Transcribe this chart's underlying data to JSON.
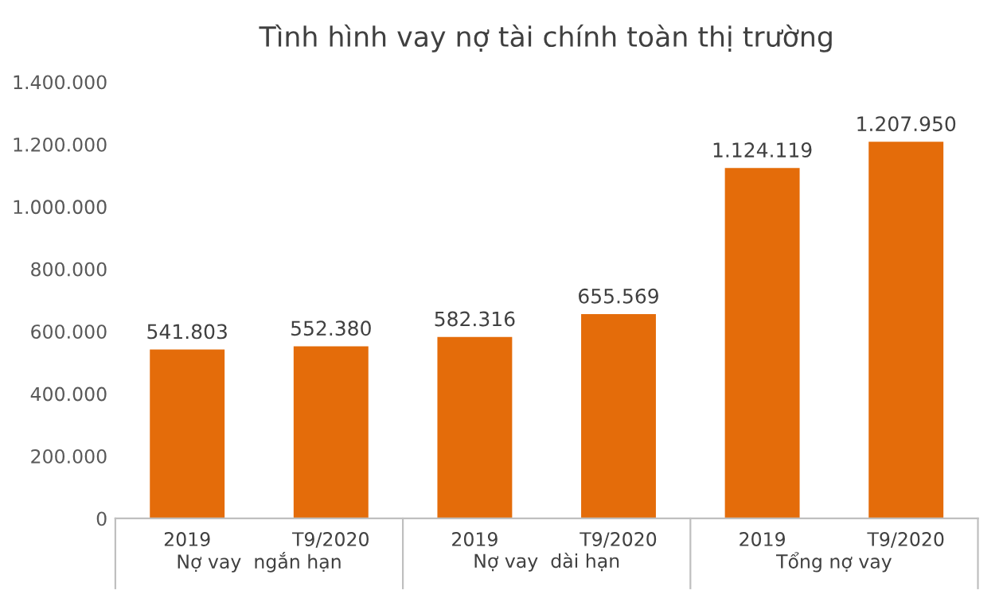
{
  "chart_data": {
    "type": "bar",
    "title": "Tình hình vay nợ tài chính toàn thị trường",
    "categories": [
      "2019",
      "T9/2020",
      "2019",
      "T9/2020",
      "2019",
      "T9/2020"
    ],
    "values": [
      541803,
      552380,
      582316,
      655569,
      1124119,
      1207950
    ],
    "value_labels": [
      "541.803",
      "552.380",
      "582.316",
      "655.569",
      "1.124.119",
      "1.207.950"
    ],
    "color": "#e46c0a",
    "ylim": [
      0,
      1400000
    ],
    "yticks": [
      0,
      {
        "value": 200000,
        "label": "200.000"
      },
      {
        "value": 400000,
        "label": "400.000"
      },
      {
        "value": 600000,
        "label": "600.000"
      },
      {
        "value": 800000,
        "label": "800.000"
      },
      {
        "value": 1000000,
        "label": "1.000.000"
      },
      {
        "value": 1200000,
        "label": "1.200.000"
      },
      {
        "value": 1400000,
        "label": "1.400.000"
      }
    ],
    "annotations": [
      "Nợ vay  ngắn hạn",
      "Nợ vay  dài hạn",
      "Tổng nợ vay"
    ],
    "grid": false,
    "legend": false
  }
}
